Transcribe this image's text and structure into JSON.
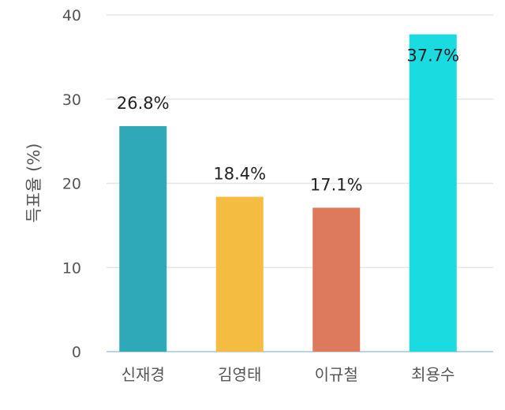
{
  "chart_data": {
    "type": "bar",
    "title": "",
    "xlabel": "",
    "ylabel": "득표율 (%)",
    "categories": [
      "신재경",
      "김영태",
      "이규철",
      "최용수"
    ],
    "values": [
      26.8,
      18.4,
      17.1,
      37.7
    ],
    "data_labels": [
      "26.8%",
      "18.4%",
      "17.1%",
      "37.7%"
    ],
    "colors": [
      "#2fa8b8",
      "#f4bd42",
      "#dc7a5b",
      "#1adbe0"
    ],
    "ylim": [
      0,
      40
    ],
    "yticks": [
      0,
      10,
      20,
      30,
      40
    ],
    "grid": true,
    "legend": "none"
  }
}
